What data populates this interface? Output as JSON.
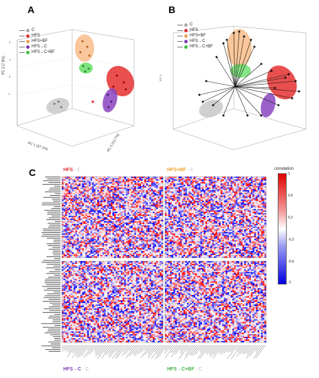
{
  "panels": {
    "a": {
      "letter": "A"
    },
    "b": {
      "letter": "B"
    },
    "c": {
      "letter": "C"
    }
  },
  "legend_a": [
    {
      "label": "C",
      "color": "#aaaaaa"
    },
    {
      "label": "HFS",
      "color": "#e53030"
    },
    {
      "label": "HFS+BF",
      "color": "#f0a050"
    },
    {
      "label": "HFS→C",
      "color": "#7a3ab0"
    },
    {
      "label": "HFS→C+BF",
      "color": "#40c040"
    }
  ],
  "legend_b": [
    {
      "label": "C",
      "color": "#aaaaaa"
    },
    {
      "label": "HFS",
      "color": "#e53030"
    },
    {
      "label": "HFS+BF",
      "color": "#f0a050"
    },
    {
      "label": "HFS→C",
      "color": "#7a3ab0"
    },
    {
      "label": "HFS→C+BF",
      "color": "#40c040"
    }
  ],
  "axes_a": {
    "z": "PC 3 (7.8%)",
    "x": "PC 1 (27.1%)",
    "y": "PC 2 (13.7%)"
  },
  "heatmaps": {
    "tl": {
      "main": "HFS",
      "main_color": "#e53030",
      "ref": "C"
    },
    "tr": {
      "main": "HFS+BF",
      "main_color": "#f0a020",
      "ref": "C"
    },
    "bl": {
      "main": "HFS→C",
      "main_color": "#7a3ab0",
      "ref": "C"
    },
    "br": {
      "main": "HFS→C+BF",
      "main_color": "#40b040",
      "ref": "C"
    }
  },
  "colorbar": {
    "label": "correlation",
    "ticks": [
      "1",
      "0.6",
      "0.2",
      "-0.2",
      "-0.6",
      "-1"
    ]
  },
  "chart_data": [
    {
      "type": "scatter",
      "title": "",
      "dims": 3,
      "series": [
        {
          "name": "C",
          "color": "#aaaaaa"
        },
        {
          "name": "HFS",
          "color": "#e53030"
        },
        {
          "name": "HFS+BF",
          "color": "#f0a050"
        },
        {
          "name": "HFS→C",
          "color": "#7a3ab0"
        },
        {
          "name": "HFS→C+BF",
          "color": "#40c040"
        }
      ]
    },
    {
      "type": "scatter",
      "title": "",
      "dims": 3,
      "biplot": true,
      "series": [
        {
          "name": "C",
          "color": "#aaaaaa"
        },
        {
          "name": "HFS",
          "color": "#e53030"
        },
        {
          "name": "HFS+BF",
          "color": "#f0a050"
        },
        {
          "name": "HFS→C",
          "color": "#7a3ab0"
        },
        {
          "name": "HFS→C+BF",
          "color": "#40c040"
        }
      ]
    },
    {
      "type": "heatmap",
      "title": "",
      "panels": [
        "HFS - C",
        "HFS+BF - C",
        "HFS→C - C",
        "HFS→C+BF - C"
      ],
      "value_range": [
        -1,
        1
      ]
    }
  ]
}
